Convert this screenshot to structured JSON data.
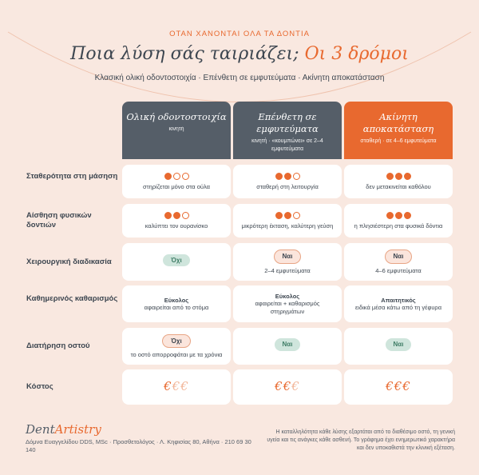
{
  "kicker": "ΟΤΑΝ ΧΑΝΟΝΤΑΙ ΟΛΑ ΤΑ ΔΟΝΤΙΑ",
  "title_main": "Ποια λύση σάς ταιριάζει; ",
  "title_accent": "Οι 3 δρόμοι",
  "subtitle": "Κλασική ολική οδοντοστοιχία · Επένθετη σε εμφυτεύματα · Ακίνητη αποκατάσταση",
  "colors": {
    "accent": "#e8692f",
    "dark": "#555e68",
    "background": "#f9e8e0"
  },
  "columns": [
    {
      "name": "Ολική οδοντοστοιχία",
      "sub": "κινητή"
    },
    {
      "name": "Επένθετη σε εμφυτεύματα",
      "sub": "κινητή · «κουμπώνει» σε 2–4 εμφυτεύματα"
    },
    {
      "name": "Ακίνητη αποκατάσταση",
      "sub": "σταθερή · σε 4–6 εμφυτεύματα"
    }
  ],
  "rows": [
    {
      "label": "Σταθερότητα στη μάσηση",
      "cells": [
        {
          "rating": 1,
          "text": "στηρίζεται μόνο στα ούλα"
        },
        {
          "rating": 2,
          "text": "σταθερή στη λειτουργία"
        },
        {
          "rating": 3,
          "text": "δεν μετακινείται καθόλου"
        }
      ]
    },
    {
      "label": "Αίσθηση φυσικών δοντιών",
      "cells": [
        {
          "rating": 2,
          "text": "καλύπτει τον ουρανίσκο"
        },
        {
          "rating": 2,
          "text": "μικρότερη έκταση, καλύτερη γεύση"
        },
        {
          "rating": 3,
          "text": "η πλησιέστερη στα φυσικά δόντια"
        }
      ]
    },
    {
      "label": "Χειρουργική διαδικασία",
      "cells": [
        {
          "pill": "Όχι",
          "text": ""
        },
        {
          "pill": "Ναι",
          "text": "2–4 εμφυτεύματα"
        },
        {
          "pill": "Ναι",
          "text": "4–6 εμφυτεύματα"
        }
      ]
    },
    {
      "label": "Καθημερινός καθαρισμός",
      "cells": [
        {
          "strong": "Εύκολος",
          "text": "αφαιρείται από το στόμα"
        },
        {
          "strong": "Εύκολος",
          "text": "αφαιρείται + καθαρισμός στηριγμάτων"
        },
        {
          "strong": "Απαιτητικός",
          "text": "ειδικά μέσα κάτω από τη γέφυρα"
        }
      ]
    },
    {
      "label": "Διατήρηση οστού",
      "cells": [
        {
          "pill": "Όχι",
          "text": "το οστό απορροφάται με τα χρόνια"
        },
        {
          "pill": "Ναι",
          "text": ""
        },
        {
          "pill": "Ναι",
          "text": ""
        }
      ]
    },
    {
      "label": "Κόστος",
      "cells": [
        {
          "cost_level": 1,
          "cost_symbol": "€"
        },
        {
          "cost_level": 2,
          "cost_symbol": "€"
        },
        {
          "cost_level": 3,
          "cost_symbol": "€"
        }
      ]
    }
  ],
  "footer": {
    "logo_a": "Dent",
    "logo_b": "Artistry",
    "address": "Δόμνα Ευαγγελίδου DDS, MSc · Προσθετολόγος · Λ. Κηφισίας 80, Αθήνα · 210 69 30 140",
    "note": "Η καταλληλότητα κάθε λύσης εξαρτάται από το διαθέσιμο οστό, τη γενική υγεία και τις ανάγκες κάθε ασθενή. Το γράφημα έχει ενημερωτικό χαρακτήρα και δεν υποκαθιστά την κλινική εξέταση."
  }
}
